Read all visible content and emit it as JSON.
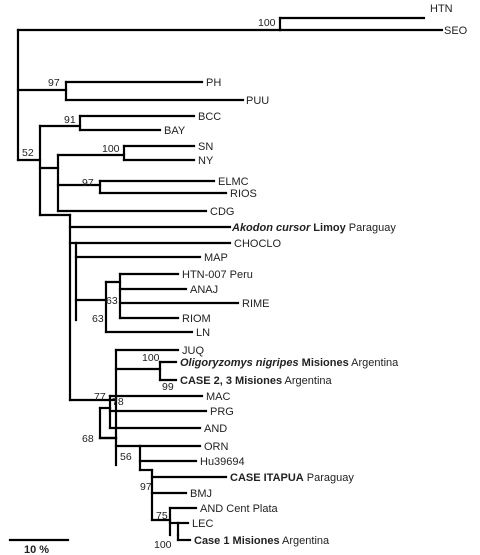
{
  "taxa": {
    "HTN": "HTN",
    "SEO": "SEO",
    "PH": "PH",
    "PUU": "PUU",
    "BCC": "BCC",
    "BAY": "BAY",
    "SN": "SN",
    "NY": "NY",
    "ELMC": "ELMC",
    "RIOS": "RIOS",
    "CDG": "CDG",
    "AKODON": {
      "species": "Akodon cursor",
      "place": " Limoy",
      "country": " Paraguay"
    },
    "CHOCLO": "CHOCLO",
    "MAP": "MAP",
    "HTN007": "HTN-007 Peru",
    "ANAJ": "ANAJ",
    "RIME": "RIME",
    "RIOM": "RIOM",
    "LN": "LN",
    "JUQ": "JUQ",
    "OLIGO": {
      "species": "Oligoryzomys nigripes",
      "place": " Misiones",
      "country": " Argentina"
    },
    "CASE23": {
      "name": "CASE 2, 3",
      "place": "  Misiones",
      "country": " Argentina"
    },
    "MAC": "MAC",
    "PRG": "PRG",
    "AND": "AND",
    "ORN": "ORN",
    "HU39694": "Hu39694",
    "CASEITAPUA": {
      "name": "CASE ITAPUA",
      "country": " Paraguay"
    },
    "BMJ": "BMJ",
    "ANDCP": "AND Cent Plata",
    "LEC": "LEC",
    "CASE1": {
      "name": "Case 1 Misiones",
      "country": " Argentina"
    }
  },
  "support": {
    "htn_seo": "100",
    "ph_puu": "97",
    "bcc_bay": "91",
    "main": "52",
    "sn_ny": "100",
    "elmc_rios": "97",
    "anaj_group": "63",
    "rio_group": "63",
    "oligo_case": "100",
    "oligo_case_inner": "99",
    "big_clade": "77",
    "mac_prg": "78",
    "and_group": "68",
    "orn_group": "56",
    "itapua": "97",
    "and_cp": "75",
    "case1": "100"
  },
  "scale_bar": {
    "label": "10 %"
  }
}
